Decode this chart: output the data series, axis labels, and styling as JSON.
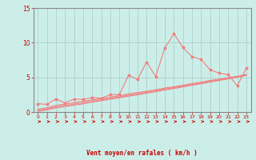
{
  "bg_color": "#cceee8",
  "grid_color": "#aacccc",
  "line_color": "#f08080",
  "xlabel": "Vent moyen/en rafales ( km/h )",
  "xlabel_color": "#cc0000",
  "tick_color": "#cc0000",
  "spine_color": "#888888",
  "red_line_color": "#cc0000",
  "ylim": [
    0,
    15
  ],
  "xlim": [
    -0.5,
    23.5
  ],
  "yticks": [
    0,
    5,
    10,
    15
  ],
  "xticks": [
    0,
    1,
    2,
    3,
    4,
    5,
    6,
    7,
    8,
    9,
    10,
    11,
    12,
    13,
    14,
    15,
    16,
    17,
    18,
    19,
    20,
    21,
    22,
    23
  ],
  "main_y": [
    1.2,
    1.1,
    1.9,
    1.3,
    1.9,
    1.8,
    2.1,
    2.0,
    2.5,
    2.5,
    5.3,
    4.7,
    7.2,
    5.1,
    9.2,
    11.3,
    9.3,
    8.0,
    7.6,
    6.1,
    5.6,
    5.4,
    3.8,
    6.3
  ],
  "trend1_y": [
    0.4,
    0.6,
    0.95,
    1.15,
    1.35,
    1.55,
    1.75,
    1.95,
    2.15,
    2.35,
    2.6,
    2.8,
    3.0,
    3.2,
    3.45,
    3.65,
    3.85,
    4.1,
    4.3,
    4.55,
    4.75,
    4.95,
    5.15,
    5.4
  ],
  "trend2_y": [
    0.25,
    0.45,
    0.75,
    0.95,
    1.15,
    1.35,
    1.58,
    1.78,
    1.98,
    2.18,
    2.42,
    2.62,
    2.85,
    3.05,
    3.3,
    3.52,
    3.72,
    3.95,
    4.18,
    4.42,
    4.62,
    4.85,
    5.08,
    5.35
  ],
  "trend3_y": [
    0.1,
    0.3,
    0.58,
    0.78,
    0.98,
    1.18,
    1.42,
    1.62,
    1.85,
    2.05,
    2.28,
    2.48,
    2.72,
    2.92,
    3.18,
    3.38,
    3.62,
    3.85,
    4.08,
    4.32,
    4.55,
    4.78,
    5.02,
    5.28
  ]
}
